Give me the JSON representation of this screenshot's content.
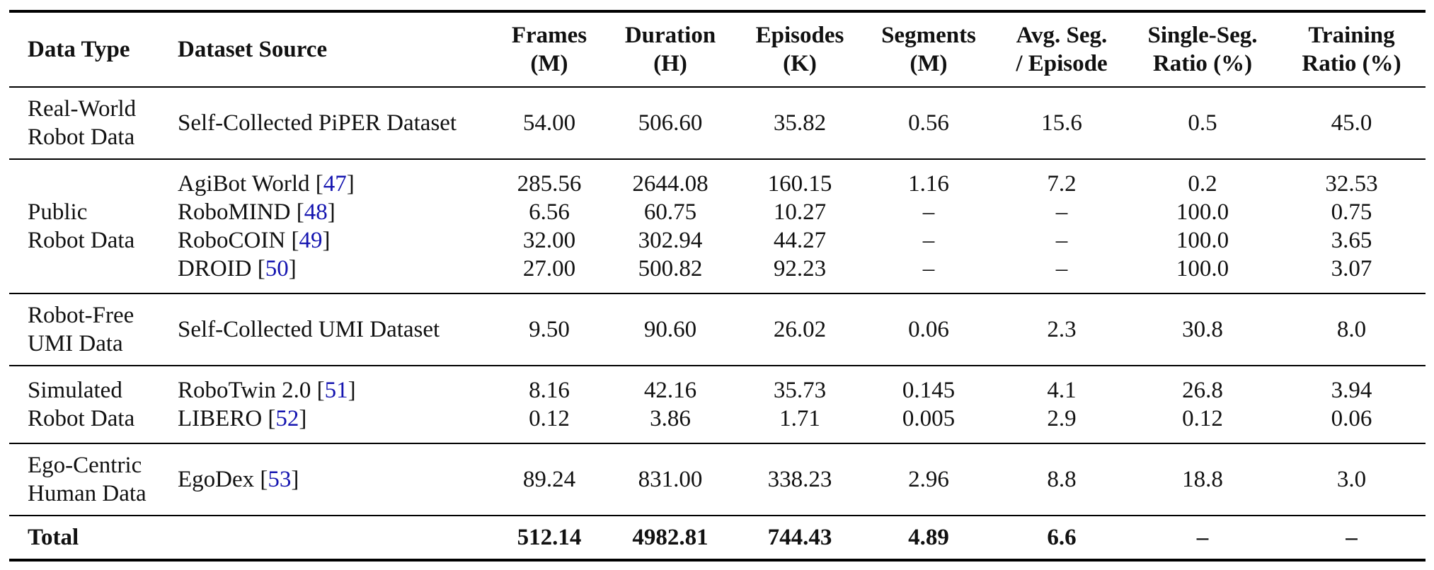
{
  "table": {
    "headers": [
      {
        "line1": "Data Type",
        "line2": ""
      },
      {
        "line1": "Dataset Source",
        "line2": ""
      },
      {
        "line1": "Frames",
        "line2": "(M)"
      },
      {
        "line1": "Duration",
        "line2": "(H)"
      },
      {
        "line1": "Episodes",
        "line2": "(K)"
      },
      {
        "line1": "Segments",
        "line2": "(M)"
      },
      {
        "line1": "Avg. Seg.",
        "line2": "/ Episode"
      },
      {
        "line1": "Single-Seg.",
        "line2": "Ratio (%)"
      },
      {
        "line1": "Training",
        "line2": "Ratio (%)"
      }
    ],
    "groups": [
      {
        "type_line1": "Real-World",
        "type_line2": "Robot Data",
        "rows": [
          {
            "source": "Self-Collected PiPER Dataset",
            "ref": "",
            "frames": "54.00",
            "duration": "506.60",
            "episodes": "35.82",
            "segments": "0.56",
            "avg_seg": "15.6",
            "single_seg": "0.5",
            "training": "45.0"
          }
        ]
      },
      {
        "type_line1": "Public",
        "type_line2": "Robot Data",
        "rows": [
          {
            "source": "AgiBot World",
            "ref": "47",
            "frames": "285.56",
            "duration": "2644.08",
            "episodes": "160.15",
            "segments": "1.16",
            "avg_seg": "7.2",
            "single_seg": "0.2",
            "training": "32.53"
          },
          {
            "source": "RoboMIND",
            "ref": "48",
            "frames": "6.56",
            "duration": "60.75",
            "episodes": "10.27",
            "segments": "–",
            "avg_seg": "–",
            "single_seg": "100.0",
            "training": "0.75"
          },
          {
            "source": "RoboCOIN",
            "ref": "49",
            "frames": "32.00",
            "duration": "302.94",
            "episodes": "44.27",
            "segments": "–",
            "avg_seg": "–",
            "single_seg": "100.0",
            "training": "3.65"
          },
          {
            "source": "DROID",
            "ref": "50",
            "frames": "27.00",
            "duration": "500.82",
            "episodes": "92.23",
            "segments": "–",
            "avg_seg": "–",
            "single_seg": "100.0",
            "training": "3.07"
          }
        ]
      },
      {
        "type_line1": "Robot-Free",
        "type_line2": "UMI Data",
        "rows": [
          {
            "source": "Self-Collected UMI Dataset",
            "ref": "",
            "frames": "9.50",
            "duration": "90.60",
            "episodes": "26.02",
            "segments": "0.06",
            "avg_seg": "2.3",
            "single_seg": "30.8",
            "training": "8.0"
          }
        ]
      },
      {
        "type_line1": "Simulated",
        "type_line2": "Robot Data",
        "rows": [
          {
            "source": "RoboTwin 2.0",
            "ref": "51",
            "frames": "8.16",
            "duration": "42.16",
            "episodes": "35.73",
            "segments": "0.145",
            "avg_seg": "4.1",
            "single_seg": "26.8",
            "training": "3.94"
          },
          {
            "source": "LIBERO",
            "ref": "52",
            "frames": "0.12",
            "duration": "3.86",
            "episodes": "1.71",
            "segments": "0.005",
            "avg_seg": "2.9",
            "single_seg": "0.12",
            "training": "0.06"
          }
        ]
      },
      {
        "type_line1": "Ego-Centric",
        "type_line2": "Human Data",
        "rows": [
          {
            "source": "EgoDex",
            "ref": "53",
            "frames": "89.24",
            "duration": "831.00",
            "episodes": "338.23",
            "segments": "2.96",
            "avg_seg": "8.8",
            "single_seg": "18.8",
            "training": "3.0"
          }
        ]
      }
    ],
    "total": {
      "label": "Total",
      "frames": "512.14",
      "duration": "4982.81",
      "episodes": "744.43",
      "segments": "4.89",
      "avg_seg": "6.6",
      "single_seg": "–",
      "training": "–"
    }
  }
}
